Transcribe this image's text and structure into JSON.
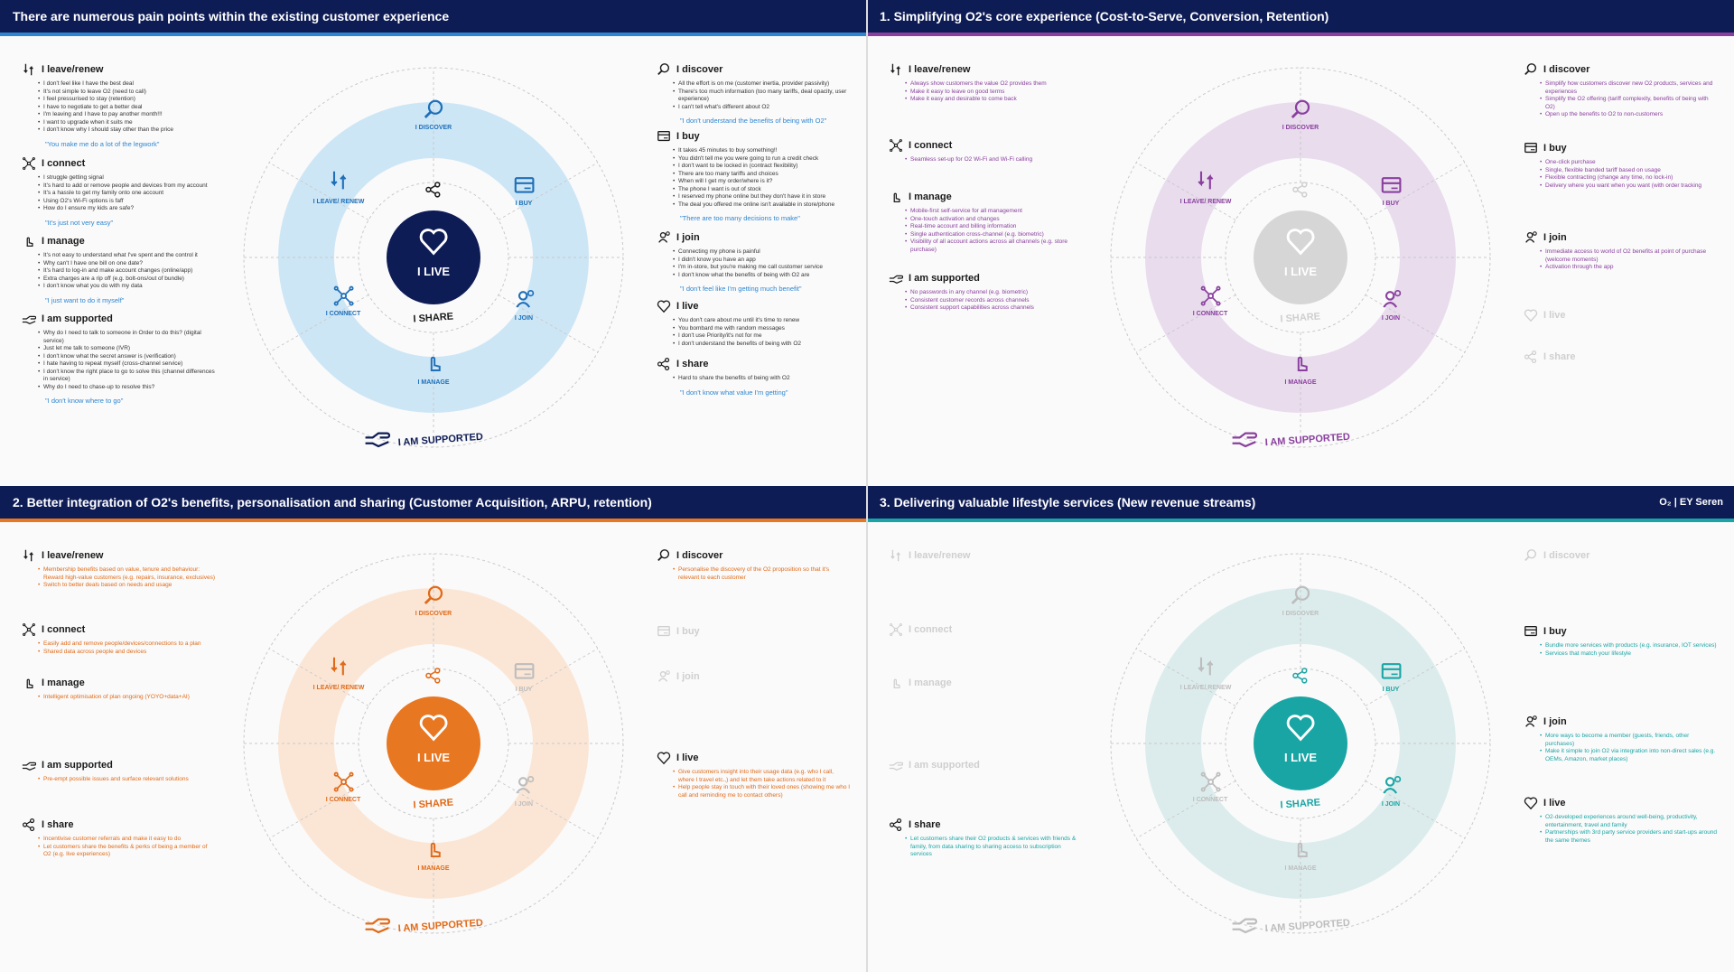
{
  "logos": {
    "o2": "O₂",
    "ey": "EY Seren"
  },
  "quadrants": [
    {
      "title": "There are numerous pain points within the existing customer experience",
      "accent": "#2e86d1",
      "ring_color": "#cde6f6",
      "core_color": "#0e1c56",
      "label_color": "#1e6fb8",
      "center": {
        "live": "I LIVE",
        "share": "I SHARE",
        "supported": "I AM SUPPORTED"
      },
      "segments": {
        "discover": "I DISCOVER",
        "buy": "I BUY",
        "join": "I JOIN",
        "manage": "I MANAGE",
        "connect": "I CONNECT",
        "leave": "I LEAVE/ RENEW"
      },
      "left": [
        {
          "title": "I leave/renew",
          "items": [
            "I don't feel like I have the best deal",
            "It's not simple to leave O2 (need to call)",
            "I feel pressurised to stay (retention)",
            "I have to negotiate to get a better deal",
            "I'm leaving and I have to pay another month!!!",
            "I want to upgrade when it suits me",
            "I don't know why I should stay other than the price"
          ],
          "quote": "\"You make me do a lot of the legwork\""
        },
        {
          "title": "I connect",
          "items": [
            "I struggle getting signal",
            "It's hard to add or remove people and devices from my account",
            "It's a hassle to get my family onto one account",
            "Using O2's Wi-Fi options is faff",
            "How do I ensure my kids are safe?"
          ],
          "quote": "\"It's just not very easy\""
        },
        {
          "title": "I manage",
          "items": [
            "It's not easy to understand what I've spent and the control it",
            "Why can't I have one bill on one date?",
            "It's hard to log-in and make account changes (online/app)",
            "Extra charges are a rip off (e.g. bolt-ons/out of bundle)",
            "I don't know what you do with my data"
          ],
          "quote": "\"I just want to do it myself\""
        },
        {
          "title": "I am supported",
          "items": [
            "Why do I need to talk to someone in Order to do this? (digital service)",
            "Just let me talk to someone (IVR)",
            "I don't know what the secret answer is (verification)",
            "I hate having to repeat myself (cross-channel service)",
            "I don't know the right place to go to solve this (channel differences in service)",
            "Why do I need to chase-up to resolve this?"
          ],
          "quote": "\"I don't know where to go\""
        }
      ],
      "right": [
        {
          "title": "I discover",
          "items": [
            "All the effort is on me (customer inertia, provider passivity)",
            "There's too much information (too many tariffs, deal opacity, user experience)",
            "I can't tell what's different about O2"
          ],
          "quote": "\"I don't understand the benefits of being with O2\""
        },
        {
          "title": "I buy",
          "items": [
            "It takes 45 minutes to buy something!!",
            "You didn't tell me you were going to run a credit check",
            "I don't want to be locked in (contract flexibility)",
            "There are too many tariffs and choices",
            "When will I get my order/where is it?",
            "The phone I want is out of stock",
            "I reserved my phone online but they don't have it in store",
            "The deal you offered me online isn't available in store/phone"
          ],
          "quote": "\"There are too many decisions to make\""
        },
        {
          "title": "I join",
          "items": [
            "Connecting my phone is painful",
            "I didn't know you have an app",
            "I'm in-store, but you're making me call customer service",
            "I don't know what the benefits of being with O2 are"
          ],
          "quote": "\"I don't feel like I'm getting much benefit\""
        },
        {
          "title": "I live",
          "items": [
            "You don't care about me until it's time to renew",
            "You bombard me with random messages",
            "I don't use Priority/it's not for me",
            "I don't understand the benefits of being with O2"
          ],
          "quote": ""
        },
        {
          "title": "I share",
          "items": [
            "Hard to share the benefits of being with O2"
          ],
          "quote": "\"I don't know what value I'm getting\""
        }
      ]
    },
    {
      "title": "1. Simplifying O2's core experience (Cost-to-Serve, Conversion, Retention)",
      "accent": "#8a3f9e",
      "ring_color": "#e8dced",
      "core_color": "#d6d6d6",
      "label_color": "#8a3f9e",
      "center": {
        "live": "I LIVE",
        "share": "I SHARE",
        "supported": "I AM SUPPORTED"
      },
      "segments": {
        "discover": "I DISCOVER",
        "buy": "I BUY",
        "join": "I JOIN",
        "manage": "I MANAGE",
        "connect": "I CONNECT",
        "leave": "I LEAVE/ RENEW"
      },
      "left": [
        {
          "title": "I leave/renew",
          "items": [
            "Always show customers the value O2 provides them",
            "Make it easy to leave on good terms",
            "Make it easy and desirable to come back"
          ],
          "quote": ""
        },
        {
          "title": "I connect",
          "items": [
            "Seamless set-up for O2 Wi-Fi and Wi-Fi calling"
          ],
          "quote": ""
        },
        {
          "title": "I manage",
          "items": [
            "Mobile-first self-service for all management",
            "One-touch activation and changes",
            "Real-time account and billing information",
            "Single authentication cross-channel (e.g. biometric)",
            "Visibility of all account actions across all channels (e.g. store purchase)"
          ],
          "quote": ""
        },
        {
          "title": "I am supported",
          "items": [
            "No passwords in any channel (e.g. biometric)",
            "Consistent customer records across channels",
            "Consistent support capabilities across channels"
          ],
          "quote": ""
        }
      ],
      "right": [
        {
          "title": "I discover",
          "items": [
            "Simplify how customers discover new O2 products, services and experiences",
            "Simplify the O2 offering (tariff complexity, benefits of being with O2)",
            "Open up the benefits to O2 to non-customers"
          ],
          "quote": ""
        },
        {
          "title": "I buy",
          "items": [
            "One-click purchase",
            "Single, flexible banded tariff based on usage",
            "Flexible contracting (change any time, no lock-in)",
            "Delivery where you want when you want (with order tracking"
          ],
          "quote": ""
        },
        {
          "title": "I join",
          "items": [
            "Immediate access to world of O2 benefits at point of purchase (welcome moments)",
            "Activation through the app"
          ],
          "quote": ""
        },
        {
          "title": "I live",
          "items": [],
          "quote": "",
          "dim": true
        },
        {
          "title": "I share",
          "items": [],
          "quote": "",
          "dim": true
        }
      ]
    },
    {
      "title": "2. Better integration of O2's benefits, personalisation and sharing (Customer Acquisition, ARPU,  retention)",
      "accent": "#e87722",
      "ring_color": "#fbe6d6",
      "core_color": "#e87722",
      "label_color": "#e06a18",
      "center": {
        "live": "I LIVE",
        "share": "I SHARE",
        "supported": "I AM SUPPORTED"
      },
      "segments": {
        "discover": "I DISCOVER",
        "buy": "I BUY",
        "join": "I JOIN",
        "manage": "I MANAGE",
        "connect": "I CONNECT",
        "leave": "I LEAVE/ RENEW"
      },
      "left": [
        {
          "title": "I leave/renew",
          "items": [
            "Membership benefits based on value, tenure and behaviour: Reward high-value customers (e.g. repairs, insurance, exclusives)",
            "Switch to better deals based on needs and usage"
          ],
          "quote": ""
        },
        {
          "title": "I connect",
          "items": [
            "Easily add and remove people/devices/connections to a plan",
            "Shared data across people and devices"
          ],
          "quote": ""
        },
        {
          "title": "I manage",
          "items": [
            "Intelligent optimisation of plan ongoing (YOYO+data+AI)"
          ],
          "quote": ""
        },
        {
          "title": "I am supported",
          "items": [
            "Pre-empt possible issues and surface relevant solutions"
          ],
          "quote": ""
        },
        {
          "title": "I share",
          "items": [
            "Incentivise customer referrals and make it easy to do",
            "Let customers share the benefits & perks of  being a member of O2 (e.g. live experiences)"
          ],
          "quote": ""
        }
      ],
      "right": [
        {
          "title": "I discover",
          "items": [
            "Personalise the discovery of the O2 proposition so that it's relevant to each customer"
          ],
          "quote": ""
        },
        {
          "title": "I buy",
          "items": [],
          "quote": "",
          "dim": true
        },
        {
          "title": "I join",
          "items": [],
          "quote": "",
          "dim": true
        },
        {
          "title": "I live",
          "items": [
            "Give customers insight into their usage data (e.g. who I call, where I travel etc.,) and let them take actions related to it",
            "Help people stay in touch with their loved ones (showing me who I call and reminding me to contact others)"
          ],
          "quote": ""
        }
      ]
    },
    {
      "title": "3. Delivering valuable lifestyle services (New revenue streams)",
      "accent": "#1aa5a5",
      "ring_color": "#dcecec",
      "core_color": "#1aa5a5",
      "label_color": "#1aa5a5",
      "center": {
        "live": "I LIVE",
        "share": "I SHARE",
        "supported": "I AM SUPPORTED"
      },
      "segments": {
        "discover": "I DISCOVER",
        "buy": "I BUY",
        "join": "I JOIN",
        "manage": "I MANAGE",
        "connect": "I CONNECT",
        "leave": "I LEAVE/ RENEW"
      },
      "left": [
        {
          "title": "I leave/renew",
          "items": [],
          "quote": "",
          "dim": true
        },
        {
          "title": "I connect",
          "items": [],
          "quote": "",
          "dim": true
        },
        {
          "title": "I manage",
          "items": [],
          "quote": "",
          "dim": true
        },
        {
          "title": "I am supported",
          "items": [],
          "quote": "",
          "dim": true
        },
        {
          "title": "I share",
          "items": [
            "Let customers share their O2 products & services with friends & family, from data sharing to sharing access to subscription services"
          ],
          "quote": ""
        }
      ],
      "right": [
        {
          "title": "I discover",
          "items": [],
          "quote": "",
          "dim": true
        },
        {
          "title": "I buy",
          "items": [
            "Bundle more services with products (e.g. insurance, IOT services)",
            "Services that match your lifestyle"
          ],
          "quote": ""
        },
        {
          "title": "I join",
          "items": [
            "More ways to become a member (guests, friends, other purchases)",
            "Make it simple to join O2 via integration into non-direct sales (e.g. OEMs, Amazon, market places)"
          ],
          "quote": ""
        },
        {
          "title": "I live",
          "items": [
            "O2-developed experiences around well-being, productivity, entertainment, travel and family",
            "Partnerships with 3rd party service providers and start-ups around the same themes"
          ],
          "quote": ""
        }
      ]
    }
  ]
}
